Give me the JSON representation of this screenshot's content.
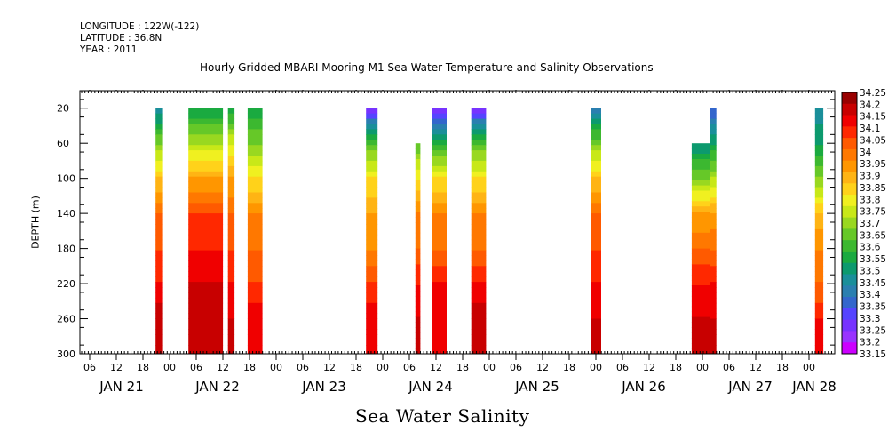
{
  "header": {
    "longitude": "LONGITUDE : 122W(-122)",
    "latitude": "LATITUDE : 36.8N",
    "year": "YEAR : 2011"
  },
  "chart_data": {
    "type": "heatmap",
    "title": "Hourly Gridded MBARI Mooring M1 Sea Water Temperature and Salinity Observations",
    "xlabel": "Sea Water Salinity",
    "ylabel": "DEPTH (m)",
    "x_hour_ticks": [
      "06",
      "12",
      "18",
      "00",
      "06",
      "12",
      "18",
      "00",
      "06",
      "12",
      "18",
      "00",
      "06",
      "12",
      "18",
      "00",
      "06",
      "12",
      "18",
      "00",
      "06",
      "12",
      "18",
      "00",
      "06",
      "12",
      "18",
      "00",
      "06",
      "12",
      "18",
      "00"
    ],
    "x_day_labels": [
      "JAN 21",
      "JAN 22",
      "JAN 23",
      "JAN 24",
      "JAN 25",
      "JAN 26",
      "JAN 27",
      "JAN 28"
    ],
    "x_range_hours": [
      0,
      168
    ],
    "y_ticks": [
      20,
      60,
      100,
      140,
      180,
      220,
      260,
      300
    ],
    "ylim": [
      300,
      10
    ],
    "colorbar_levels": [
      33.15,
      33.2,
      33.25,
      33.3,
      33.35,
      33.4,
      33.45,
      33.5,
      33.55,
      33.6,
      33.65,
      33.7,
      33.75,
      33.8,
      33.85,
      33.9,
      33.95,
      34,
      34.05,
      34.1,
      34.15,
      34.2,
      34.25
    ],
    "colorbar_colors": [
      "#cc00ff",
      "#9933ff",
      "#7733ff",
      "#5544ff",
      "#3366cc",
      "#2a7fb0",
      "#1a8f9a",
      "#0c9a6e",
      "#1aaa40",
      "#3cb830",
      "#66c828",
      "#99d820",
      "#c8e818",
      "#f0f020",
      "#ffd21a",
      "#ffb414",
      "#ff9600",
      "#ff7800",
      "#ff5a00",
      "#ff2800",
      "#f00000",
      "#c80000",
      "#990000"
    ],
    "profiles": [
      {
        "start_hour": 46,
        "end_hour": 50,
        "top_depth": 20,
        "values": [
          [
            20,
            33.45
          ],
          [
            60,
            33.7
          ],
          [
            100,
            33.9
          ],
          [
            140,
            34.05
          ],
          [
            180,
            34.1
          ],
          [
            220,
            34.15
          ],
          [
            260,
            34.25
          ],
          [
            300,
            34.2
          ]
        ]
      },
      {
        "start_hour": 66,
        "end_hour": 87,
        "top_depth": 20,
        "values": [
          [
            20,
            33.55
          ],
          [
            60,
            33.75
          ],
          [
            100,
            33.95
          ],
          [
            140,
            34.1
          ],
          [
            180,
            34.15
          ],
          [
            220,
            34.2
          ],
          [
            260,
            34.25
          ],
          [
            300,
            34.2
          ]
        ]
      },
      {
        "start_hour": 90,
        "end_hour": 94,
        "top_depth": 20,
        "values": [
          [
            20,
            33.55
          ],
          [
            60,
            33.8
          ],
          [
            100,
            33.95
          ],
          [
            140,
            34.05
          ],
          [
            180,
            34.1
          ],
          [
            220,
            34.15
          ],
          [
            260,
            34.2
          ],
          [
            300,
            34.2
          ]
        ]
      },
      {
        "start_hour": 102,
        "end_hour": 111,
        "top_depth": 20,
        "values": [
          [
            20,
            33.55
          ],
          [
            60,
            33.7
          ],
          [
            100,
            33.85
          ],
          [
            140,
            34.0
          ],
          [
            180,
            34.05
          ],
          [
            220,
            34.1
          ],
          [
            260,
            34.2
          ],
          [
            300,
            34.15
          ]
        ]
      },
      {
        "start_hour": 174,
        "end_hour": 181,
        "top_depth": 20,
        "values": [
          [
            20,
            33.25
          ],
          [
            60,
            33.65
          ],
          [
            100,
            33.85
          ],
          [
            140,
            33.95
          ],
          [
            180,
            34.0
          ],
          [
            220,
            34.1
          ],
          [
            260,
            34.2
          ],
          [
            300,
            34.15
          ]
        ]
      },
      {
        "start_hour": 204,
        "end_hour": 207,
        "top_depth": 60,
        "values": [
          [
            60,
            33.65
          ],
          [
            100,
            33.85
          ],
          [
            140,
            34.0
          ],
          [
            180,
            34.05
          ],
          [
            220,
            34.15
          ],
          [
            260,
            34.2
          ],
          [
            300,
            34.2
          ]
        ]
      },
      {
        "start_hour": 214,
        "end_hour": 223,
        "top_depth": 20,
        "values": [
          [
            20,
            33.25
          ],
          [
            60,
            33.6
          ],
          [
            100,
            33.85
          ],
          [
            140,
            34.0
          ],
          [
            180,
            34.05
          ],
          [
            220,
            34.15
          ],
          [
            260,
            34.2
          ],
          [
            300,
            34.15
          ]
        ]
      },
      {
        "start_hour": 238,
        "end_hour": 247,
        "top_depth": 20,
        "values": [
          [
            20,
            33.25
          ],
          [
            60,
            33.65
          ],
          [
            100,
            33.85
          ],
          [
            140,
            34.0
          ],
          [
            180,
            34.05
          ],
          [
            220,
            34.15
          ],
          [
            260,
            34.25
          ],
          [
            300,
            34.2
          ]
        ]
      },
      {
        "start_hour": 311,
        "end_hour": 317,
        "top_depth": 20,
        "values": [
          [
            20,
            33.4
          ],
          [
            60,
            33.7
          ],
          [
            100,
            33.9
          ],
          [
            140,
            34.05
          ],
          [
            180,
            34.1
          ],
          [
            220,
            34.15
          ],
          [
            260,
            34.2
          ],
          [
            300,
            34.2
          ]
        ]
      },
      {
        "start_hour": 372,
        "end_hour": 383,
        "top_depth": 60,
        "values": [
          [
            60,
            33.5
          ],
          [
            100,
            33.7
          ],
          [
            140,
            33.95
          ],
          [
            180,
            34.05
          ],
          [
            220,
            34.15
          ],
          [
            260,
            34.2
          ],
          [
            300,
            34.2
          ]
        ]
      },
      {
        "start_hour": 383,
        "end_hour": 387,
        "top_depth": 20,
        "values": [
          [
            20,
            33.35
          ],
          [
            60,
            33.55
          ],
          [
            100,
            33.75
          ],
          [
            140,
            33.95
          ],
          [
            180,
            34.05
          ],
          [
            220,
            34.15
          ],
          [
            260,
            34.2
          ],
          [
            300,
            34.2
          ]
        ]
      },
      {
        "start_hour": 447,
        "end_hour": 452,
        "top_depth": 20,
        "values": [
          [
            20,
            33.45
          ],
          [
            60,
            33.55
          ],
          [
            100,
            33.7
          ],
          [
            140,
            33.9
          ],
          [
            180,
            34.0
          ],
          [
            220,
            34.05
          ],
          [
            260,
            34.15
          ],
          [
            300,
            34.15
          ]
        ]
      }
    ]
  }
}
